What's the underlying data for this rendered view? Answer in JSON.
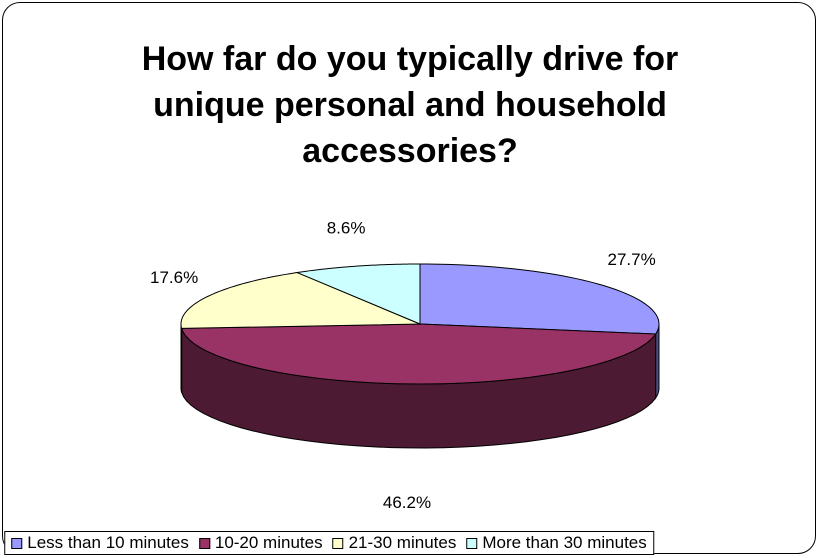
{
  "chart_data": {
    "type": "pie",
    "title_lines": [
      "How far do you typically drive for",
      "unique personal and household",
      "accessories?"
    ],
    "slices": [
      {
        "label": "Less than 10 minutes",
        "value": 27.7,
        "data_label": "27.7%",
        "color": "#9999FF",
        "side_color": "#4D4D80"
      },
      {
        "label": "10-20 minutes",
        "value": 46.2,
        "data_label": "46.2%",
        "color": "#993366",
        "side_color": "#4D1A33"
      },
      {
        "label": "21-30 minutes",
        "value": 17.6,
        "data_label": "17.6%",
        "color": "#FFFFCC",
        "side_color": "#808066"
      },
      {
        "label": "More than 30 minutes",
        "value": 8.6,
        "data_label": "8.6%",
        "color": "#CCFFFF",
        "side_color": "#668080"
      }
    ],
    "legend_position": "bottom"
  }
}
